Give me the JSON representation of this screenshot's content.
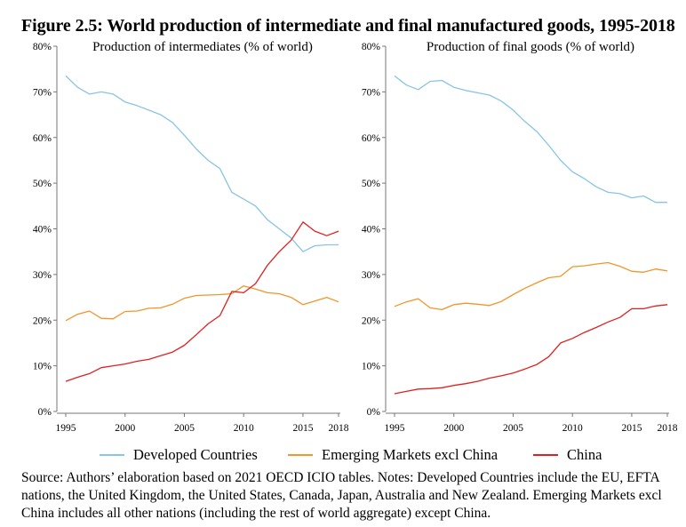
{
  "title": "Figure 2.5: World production of intermediate and final manufactured goods, 1995-2018",
  "legend": [
    {
      "label": "Developed Countries",
      "color": "#88c4e6"
    },
    {
      "label": "Emerging Markets excl China",
      "color": "#f0962a"
    },
    {
      "label": "China",
      "color": "#e02020"
    }
  ],
  "source_note": "Source: Authors’ elaboration based on 2021 OECD ICIO tables. Notes: Developed Countries include the EU, EFTA nations, the United Kingdom, the United States, Canada, Japan, Australia and New Zealand. Emerging Markets excl China includes all other nations (including the rest of world aggregate) except China.",
  "chart_data": [
    {
      "type": "line",
      "title": "Production of intermediates (% of world)",
      "x": [
        1995,
        1996,
        1997,
        1998,
        1999,
        2000,
        2001,
        2002,
        2003,
        2004,
        2005,
        2006,
        2007,
        2008,
        2009,
        2010,
        2011,
        2012,
        2013,
        2014,
        2015,
        2016,
        2017,
        2018
      ],
      "xticks": [
        "1995",
        "2000",
        "2005",
        "2010",
        "2015",
        "2018"
      ],
      "yticks": [
        "0%",
        "10%",
        "20%",
        "30%",
        "40%",
        "50%",
        "60%",
        "70%",
        "80%"
      ],
      "ylim": [
        0,
        80
      ],
      "series": [
        {
          "name": "Developed Countries",
          "color": "#88c4e6",
          "values": [
            73.5,
            71.0,
            69.5,
            70.0,
            69.5,
            67.8,
            67.0,
            66.0,
            65.0,
            63.3,
            60.5,
            57.5,
            55.0,
            53.2,
            48.0,
            46.5,
            45.0,
            42.0,
            40.0,
            38.0,
            35.0,
            36.3,
            36.5,
            36.5
          ]
        },
        {
          "name": "Emerging Markets excl China",
          "color": "#f0962a",
          "values": [
            19.9,
            21.3,
            22.0,
            20.4,
            20.3,
            21.9,
            22.0,
            22.6,
            22.7,
            23.5,
            24.8,
            25.4,
            25.5,
            25.6,
            25.8,
            27.5,
            26.8,
            26.0,
            25.8,
            25.0,
            23.4,
            24.2,
            25.0,
            24.0
          ]
        },
        {
          "name": "China",
          "color": "#e02020",
          "values": [
            6.6,
            7.5,
            8.3,
            9.6,
            10.0,
            10.4,
            11.0,
            11.4,
            12.2,
            13.0,
            14.5,
            16.8,
            19.2,
            21.0,
            26.3,
            26.0,
            28.0,
            32.0,
            35.0,
            37.5,
            41.5,
            39.5,
            38.5,
            39.5
          ]
        }
      ]
    },
    {
      "type": "line",
      "title": "Production of final goods (% of world)",
      "x": [
        1995,
        1996,
        1997,
        1998,
        1999,
        2000,
        2001,
        2002,
        2003,
        2004,
        2005,
        2006,
        2007,
        2008,
        2009,
        2010,
        2011,
        2012,
        2013,
        2014,
        2015,
        2016,
        2017,
        2018
      ],
      "xticks": [
        "1995",
        "2000",
        "2005",
        "2010",
        "2015",
        "2018"
      ],
      "yticks": [
        "0%",
        "10%",
        "20%",
        "30%",
        "40%",
        "50%",
        "60%",
        "70%",
        "80%"
      ],
      "ylim": [
        0,
        80
      ],
      "series": [
        {
          "name": "Developed Countries",
          "color": "#88c4e6",
          "values": [
            73.5,
            71.5,
            70.5,
            72.3,
            72.5,
            71.0,
            70.3,
            69.8,
            69.3,
            68.0,
            66.0,
            63.5,
            61.3,
            58.3,
            55.0,
            52.5,
            51.0,
            49.2,
            48.0,
            47.7,
            46.8,
            47.2,
            45.8,
            45.8
          ]
        },
        {
          "name": "Emerging Markets excl China",
          "color": "#f0962a",
          "values": [
            23.0,
            24.0,
            24.7,
            22.7,
            22.3,
            23.4,
            23.7,
            23.5,
            23.2,
            24.1,
            25.6,
            27.0,
            28.2,
            29.3,
            29.6,
            31.7,
            31.9,
            32.3,
            32.6,
            31.8,
            30.7,
            30.5,
            31.2,
            30.8
          ]
        },
        {
          "name": "China",
          "color": "#e02020",
          "values": [
            3.9,
            4.4,
            4.9,
            5.0,
            5.2,
            5.7,
            6.1,
            6.6,
            7.3,
            7.8,
            8.4,
            9.3,
            10.3,
            12.0,
            15.0,
            16.0,
            17.3,
            18.4,
            19.6,
            20.6,
            22.5,
            22.5,
            23.1,
            23.4
          ]
        }
      ]
    }
  ]
}
